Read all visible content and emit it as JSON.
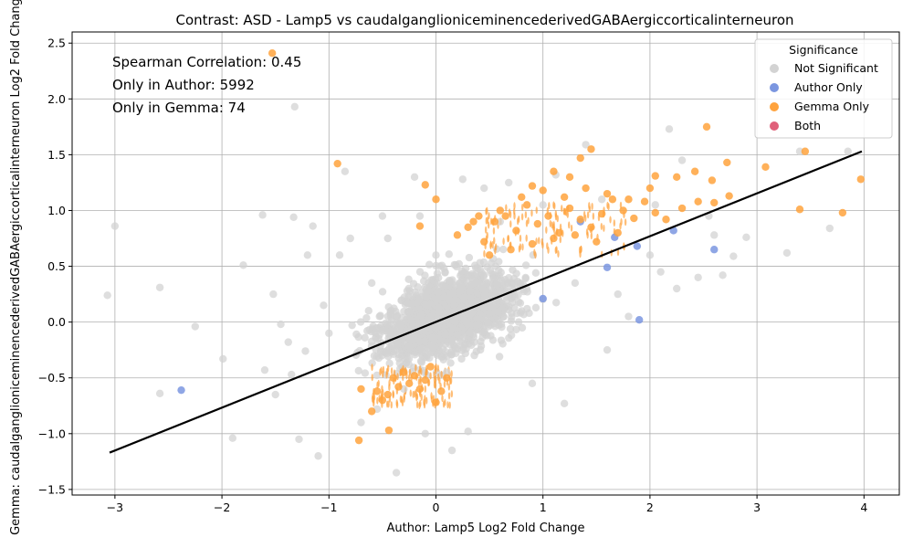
{
  "chart_data": {
    "type": "scatter",
    "title": "Contrast: ASD - Lamp5 vs caudalganglioniceminencederivedGABAergiccorticalinterneuron",
    "xlabel": "Author: Lamp5 Log2 Fold Change",
    "ylabel": "Gemma: caudalganglioniceminencederivedGABAergiccorticalinterneuron Log2 Fold Change",
    "xlim": [
      -3.4,
      4.33
    ],
    "ylim": [
      -1.55,
      2.6
    ],
    "xticks": [
      -3,
      -2,
      -1,
      0,
      1,
      2,
      3,
      4
    ],
    "yticks": [
      -1.5,
      -1.0,
      -0.5,
      0.0,
      0.5,
      1.0,
      1.5,
      2.0,
      2.5
    ],
    "xtick_labels": [
      "−3",
      "−2",
      "−1",
      "0",
      "1",
      "2",
      "3",
      "4"
    ],
    "ytick_labels": [
      "−1.5",
      "−1.0",
      "−0.5",
      "0.0",
      "0.5",
      "1.0",
      "1.5",
      "2.0",
      "2.5"
    ],
    "grid": true,
    "annotations": [
      "Spearman Correlation: 0.45",
      "Only in Author: 5992",
      "Only in Gemma: 74"
    ],
    "legend": {
      "title": "Significance",
      "placement": "top-right",
      "entries": [
        {
          "label": "Not Significant",
          "color": "#d3d3d3"
        },
        {
          "label": "Author Only",
          "color": "#7b96e0"
        },
        {
          "label": "Gemma Only",
          "color": "#ffa33d"
        },
        {
          "label": "Both",
          "color": "#e0607a"
        }
      ]
    },
    "regression_line": {
      "x": [
        -3.05,
        3.98
      ],
      "y": [
        -1.17,
        1.53
      ],
      "color": "#000000"
    },
    "series": [
      {
        "name": "Not Significant",
        "color": "#d3d3d3",
        "points": [
          [
            -3.07,
            0.24
          ],
          [
            -3.0,
            0.86
          ],
          [
            -2.58,
            0.31
          ],
          [
            -2.58,
            -0.64
          ],
          [
            -2.25,
            -0.04
          ],
          [
            -1.99,
            -0.33
          ],
          [
            -1.9,
            -1.04
          ],
          [
            -1.8,
            0.51
          ],
          [
            -1.62,
            0.96
          ],
          [
            -1.6,
            -0.43
          ],
          [
            -1.52,
            0.25
          ],
          [
            -1.5,
            -0.65
          ],
          [
            -1.45,
            -0.02
          ],
          [
            -1.38,
            -0.18
          ],
          [
            -1.35,
            -0.47
          ],
          [
            -1.32,
            1.93
          ],
          [
            -1.33,
            0.94
          ],
          [
            -1.28,
            -1.05
          ],
          [
            -1.22,
            -0.26
          ],
          [
            -1.15,
            0.86
          ],
          [
            -1.1,
            -1.2
          ],
          [
            -1.05,
            0.15
          ],
          [
            -0.85,
            1.35
          ],
          [
            -0.55,
            -0.78
          ],
          [
            -0.5,
            0.95
          ],
          [
            -0.37,
            -1.35
          ],
          [
            -0.2,
            1.3
          ],
          [
            -0.1,
            -1.0
          ],
          [
            0.15,
            -1.15
          ],
          [
            0.3,
            -0.98
          ],
          [
            0.25,
            1.28
          ],
          [
            0.45,
            1.2
          ],
          [
            1.4,
            1.59
          ],
          [
            2.18,
            1.73
          ],
          [
            2.3,
            1.45
          ],
          [
            2.45,
            0.4
          ],
          [
            2.6,
            0.78
          ],
          [
            2.68,
            0.42
          ],
          [
            2.78,
            0.59
          ],
          [
            2.9,
            0.76
          ],
          [
            3.4,
            1.53
          ],
          [
            3.68,
            0.84
          ],
          [
            3.85,
            1.53
          ],
          [
            2.25,
            0.3
          ],
          [
            1.8,
            0.05
          ],
          [
            1.6,
            -0.25
          ],
          [
            1.2,
            -0.73
          ],
          [
            0.9,
            -0.55
          ],
          [
            -0.7,
            -0.9
          ],
          [
            -0.9,
            0.6
          ],
          [
            -0.6,
            0.35
          ],
          [
            -1.0,
            -0.1
          ],
          [
            0.0,
            0.6
          ],
          [
            0.6,
            0.9
          ],
          [
            1.0,
            1.05
          ],
          [
            1.3,
            0.35
          ],
          [
            0.8,
            0.1
          ],
          [
            -0.3,
            -0.6
          ],
          [
            0.1,
            -0.45
          ],
          [
            2.0,
            0.6
          ],
          [
            2.1,
            0.45
          ],
          [
            1.7,
            0.25
          ],
          [
            -1.2,
            0.6
          ],
          [
            -0.8,
            0.75
          ],
          [
            3.28,
            0.62
          ],
          [
            2.55,
            0.95
          ],
          [
            2.05,
            1.05
          ],
          [
            1.55,
            1.1
          ],
          [
            1.12,
            1.32
          ],
          [
            0.68,
            1.25
          ],
          [
            -0.15,
            0.95
          ],
          [
            -0.45,
            0.75
          ]
        ]
      },
      {
        "name": "Author Only",
        "color": "#7b96e0",
        "points": [
          [
            -2.38,
            -0.61
          ],
          [
            1.0,
            0.21
          ],
          [
            1.35,
            0.9
          ],
          [
            1.6,
            0.49
          ],
          [
            1.67,
            0.76
          ],
          [
            1.88,
            0.68
          ],
          [
            1.9,
            0.02
          ],
          [
            2.22,
            0.82
          ],
          [
            2.6,
            0.65
          ]
        ]
      },
      {
        "name": "Gemma Only",
        "color": "#ffa33d",
        "points": [
          [
            -1.53,
            2.41
          ],
          [
            -0.92,
            1.42
          ],
          [
            -0.72,
            -1.06
          ],
          [
            -0.44,
            -0.97
          ],
          [
            -0.1,
            1.23
          ],
          [
            0.0,
            1.1
          ],
          [
            2.53,
            1.75
          ],
          [
            2.72,
            1.43
          ],
          [
            3.08,
            1.39
          ],
          [
            3.4,
            1.01
          ],
          [
            3.45,
            1.53
          ],
          [
            3.8,
            0.98
          ],
          [
            3.97,
            1.28
          ],
          [
            1.45,
            1.55
          ],
          [
            1.35,
            1.47
          ],
          [
            2.05,
            1.31
          ],
          [
            2.42,
            1.35
          ],
          [
            2.58,
            1.27
          ],
          [
            2.74,
            1.13
          ],
          [
            1.1,
            1.35
          ],
          [
            1.25,
            1.3
          ],
          [
            0.9,
            1.22
          ],
          [
            2.25,
            1.3
          ],
          [
            -0.15,
            0.86
          ],
          [
            0.2,
            0.78
          ],
          [
            0.3,
            0.85
          ],
          [
            0.45,
            0.72
          ],
          [
            0.55,
            0.9
          ],
          [
            0.65,
            0.95
          ],
          [
            0.75,
            0.82
          ],
          [
            0.85,
            1.05
          ],
          [
            0.95,
            0.88
          ],
          [
            1.05,
            0.95
          ],
          [
            1.15,
            0.8
          ],
          [
            1.25,
            1.02
          ],
          [
            1.35,
            0.92
          ],
          [
            1.45,
            0.85
          ],
          [
            1.55,
            0.97
          ],
          [
            1.65,
            1.1
          ],
          [
            1.75,
            1.0
          ],
          [
            1.85,
            0.93
          ],
          [
            1.95,
            1.08
          ],
          [
            2.05,
            0.98
          ],
          [
            2.15,
            0.92
          ],
          [
            2.3,
            1.02
          ],
          [
            2.45,
            1.08
          ],
          [
            2.6,
            1.07
          ],
          [
            0.5,
            0.6
          ],
          [
            0.7,
            0.65
          ],
          [
            0.9,
            0.7
          ],
          [
            1.1,
            0.75
          ],
          [
            1.3,
            0.78
          ],
          [
            1.5,
            0.72
          ],
          [
            1.7,
            0.8
          ],
          [
            0.4,
            0.95
          ],
          [
            0.6,
            1.0
          ],
          [
            0.8,
            1.12
          ],
          [
            1.0,
            1.18
          ],
          [
            1.2,
            1.12
          ],
          [
            1.4,
            1.2
          ],
          [
            1.6,
            1.15
          ],
          [
            1.8,
            1.1
          ],
          [
            2.0,
            1.2
          ],
          [
            0.35,
            0.9
          ],
          [
            -0.55,
            -0.62
          ],
          [
            -0.5,
            -0.7
          ],
          [
            -0.45,
            -0.65
          ],
          [
            -0.4,
            -0.5
          ],
          [
            -0.35,
            -0.58
          ],
          [
            -0.3,
            -0.45
          ],
          [
            -0.25,
            -0.55
          ],
          [
            -0.2,
            -0.48
          ],
          [
            -0.15,
            -0.6
          ],
          [
            -0.1,
            -0.52
          ],
          [
            -0.05,
            -0.4
          ],
          [
            0.0,
            -0.72
          ],
          [
            0.05,
            -0.62
          ],
          [
            0.1,
            -0.5
          ],
          [
            -0.6,
            -0.8
          ],
          [
            -0.7,
            -0.6
          ]
        ]
      },
      {
        "name": "Both",
        "color": "#e0607a",
        "points": []
      }
    ]
  }
}
